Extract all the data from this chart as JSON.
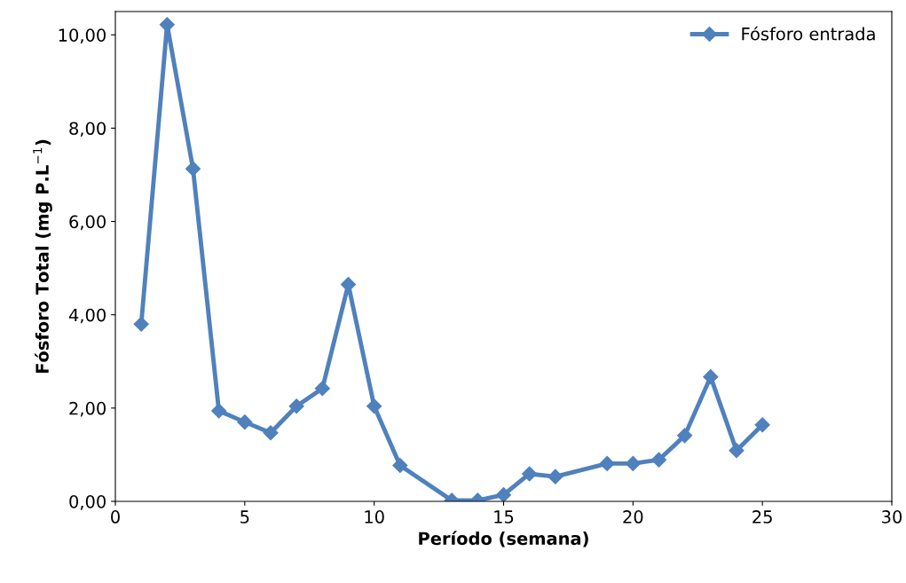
{
  "chart_data": {
    "type": "line",
    "xlabel": "Período (semana)",
    "ylabel": "Fósforo Total (mg P.L$^{−1}$)",
    "x": [
      1,
      2,
      3,
      4,
      5,
      6,
      7,
      8,
      9,
      10,
      11,
      13,
      14,
      15,
      16,
      17,
      19,
      20,
      21,
      22,
      23,
      24,
      25
    ],
    "series": [
      {
        "name": "Fósforo entrada",
        "color": "#4f81bd",
        "values": [
          3.8,
          10.22,
          7.13,
          1.94,
          1.7,
          1.47,
          2.04,
          2.42,
          4.65,
          2.04,
          0.77,
          0.02,
          0.02,
          0.14,
          0.59,
          0.53,
          0.81,
          0.81,
          0.89,
          1.41,
          2.67,
          1.09,
          1.64
        ]
      }
    ],
    "xlim": [
      0,
      30
    ],
    "xticks": [
      0,
      5,
      10,
      15,
      20,
      25,
      30
    ],
    "ylim": [
      0,
      10.5
    ],
    "yticks": [
      {
        "value": 0,
        "label": "0,00"
      },
      {
        "value": 2,
        "label": "2,00"
      },
      {
        "value": 4,
        "label": "4,00"
      },
      {
        "value": 6,
        "label": "6,00"
      },
      {
        "value": 8,
        "label": "8,00"
      },
      {
        "value": 10,
        "label": "10,00"
      }
    ],
    "marker": "diamond",
    "line_style": "solid",
    "grid": false,
    "legend": "top right"
  }
}
